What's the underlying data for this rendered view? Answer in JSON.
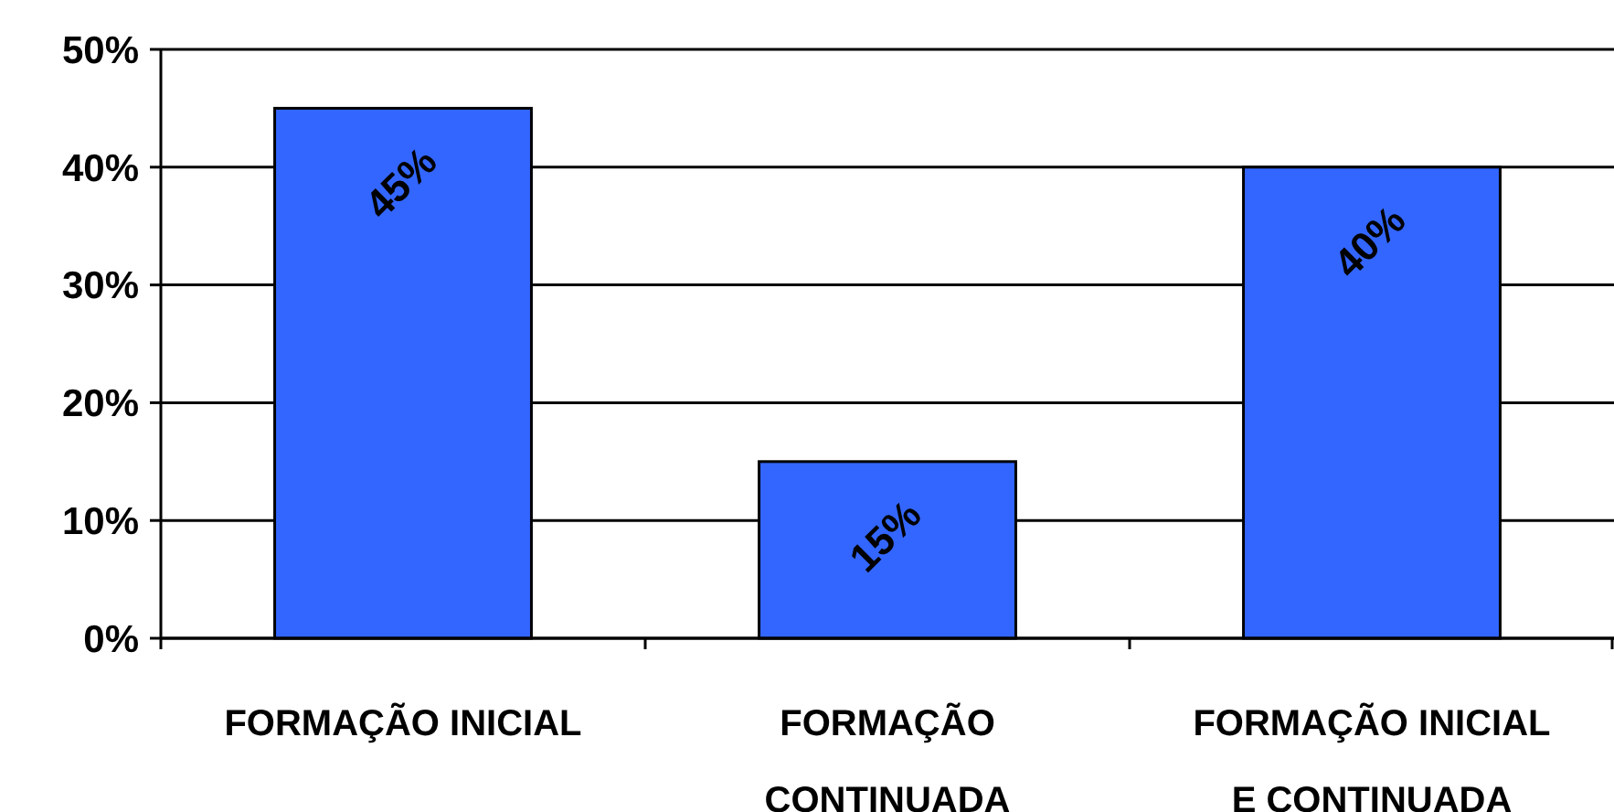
{
  "chart_data": {
    "type": "bar",
    "categories": [
      "FORMAÇÃO INICIAL",
      "FORMAÇÃO CONTINUADA",
      "FORMAÇÃO INICIAL E CONTINUADA"
    ],
    "values": [
      45,
      15,
      40
    ],
    "color": "#3366ff",
    "value_labels": [
      "45%",
      "15%",
      "40%"
    ],
    "ylim": [
      0,
      50
    ],
    "yticks": [
      {
        "value": 0,
        "label": "0%"
      },
      {
        "value": 10,
        "label": "10%"
      },
      {
        "value": 20,
        "label": "20%"
      },
      {
        "value": 30,
        "label": "30%"
      },
      {
        "value": 40,
        "label": "40%"
      },
      {
        "value": 50,
        "label": "50%"
      }
    ],
    "grid": "y"
  }
}
